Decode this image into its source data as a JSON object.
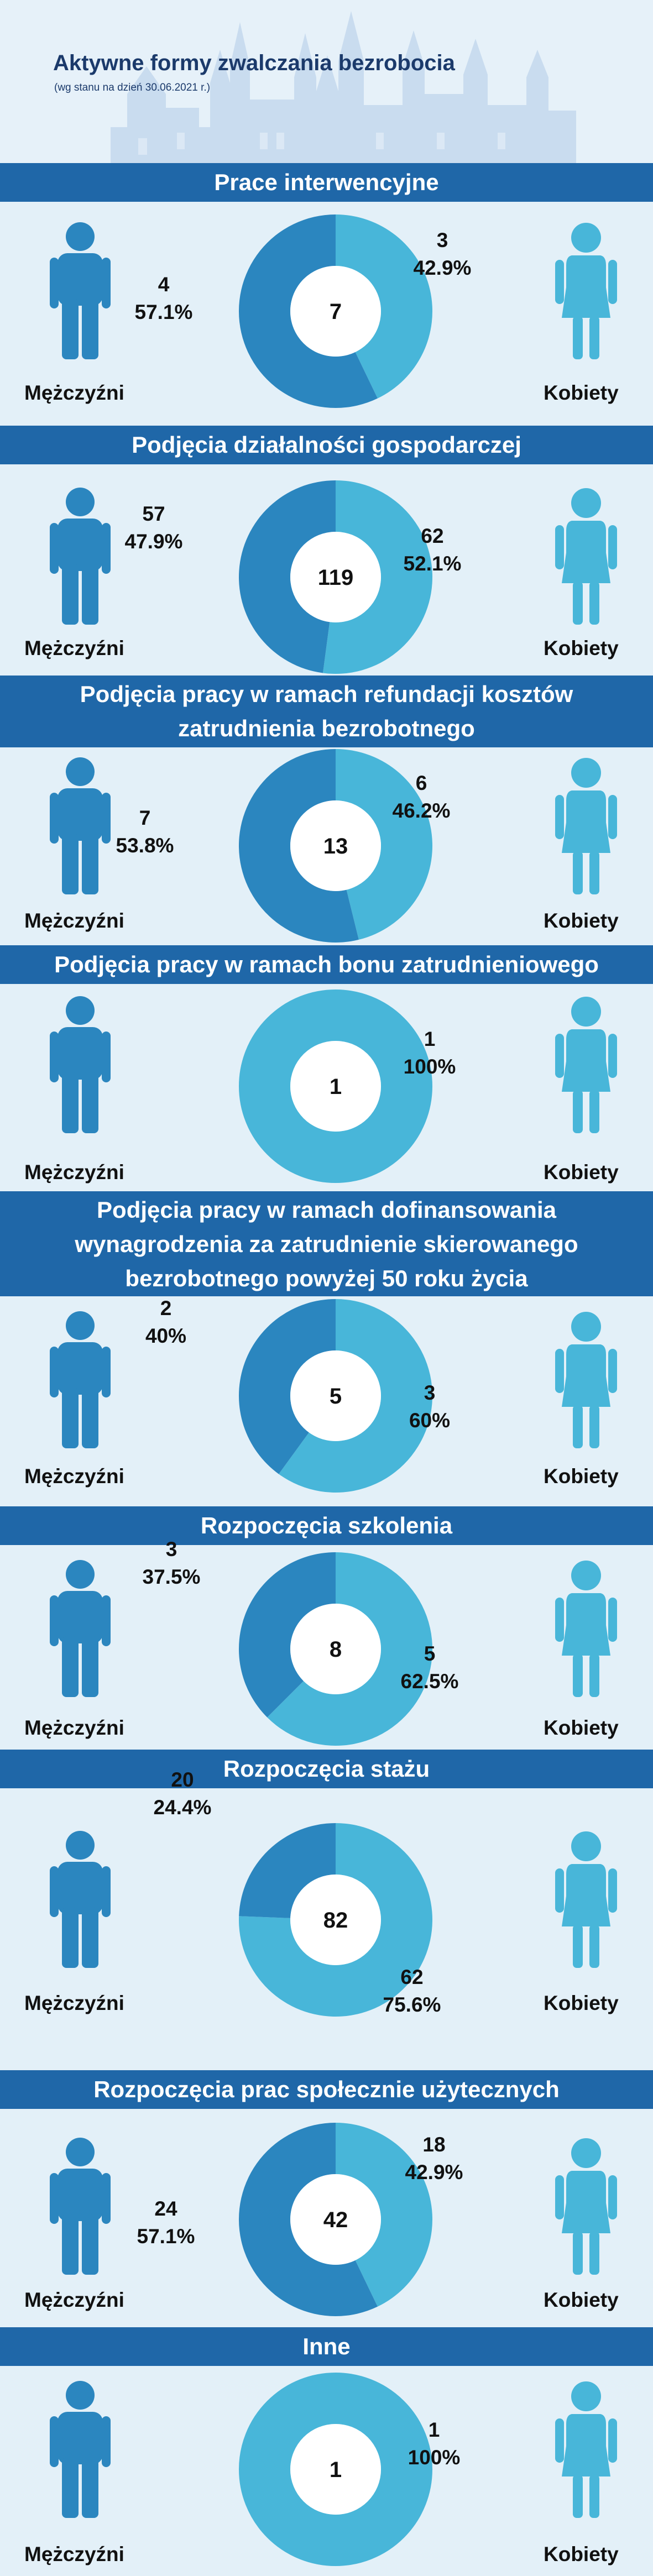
{
  "header": {
    "title": "Aktywne formy zwalczania bezrobocia",
    "subtitle": "(wg stanu na dzień 30.06.2021 r.)"
  },
  "labels": {
    "men": "Mężczyźni",
    "women": "Kobiety"
  },
  "colors": {
    "men": "#2b86bf",
    "women": "#48b6d9",
    "band": "#1f67a8",
    "background": "#e3f0f8"
  },
  "chart_data": [
    {
      "type": "pie",
      "title": "Prace interwencyjne",
      "total": "7",
      "categories": [
        "Mężczyźni",
        "Kobiety"
      ],
      "values": [
        4,
        3
      ],
      "men": {
        "count": "4",
        "pct": "57.1%"
      },
      "women": {
        "count": "3",
        "pct": "42.9%"
      }
    },
    {
      "type": "pie",
      "title": "Podjęcia działalności gospodarczej",
      "total": "119",
      "categories": [
        "Mężczyźni",
        "Kobiety"
      ],
      "values": [
        57,
        62
      ],
      "men": {
        "count": "57",
        "pct": "47.9%"
      },
      "women": {
        "count": "62",
        "pct": "52.1%"
      }
    },
    {
      "type": "pie",
      "title": "Podjęcia pracy w ramach refundacji kosztów zatrudnienia bezrobotnego",
      "total": "13",
      "categories": [
        "Mężczyźni",
        "Kobiety"
      ],
      "values": [
        7,
        6
      ],
      "men": {
        "count": "7",
        "pct": "53.8%"
      },
      "women": {
        "count": "6",
        "pct": "46.2%"
      }
    },
    {
      "type": "pie",
      "title": "Podjęcia pracy w ramach bonu zatrudnieniowego",
      "total": "1",
      "categories": [
        "Mężczyźni",
        "Kobiety"
      ],
      "values": [
        0,
        1
      ],
      "men": null,
      "women": {
        "count": "1",
        "pct": "100%"
      }
    },
    {
      "type": "pie",
      "title": "Podjęcia pracy w ramach dofinansowania wynagrodzenia za zatrudnienie skierowanego bezrobotnego powyżej 50 roku życia",
      "total": "5",
      "categories": [
        "Mężczyźni",
        "Kobiety"
      ],
      "values": [
        2,
        3
      ],
      "men": {
        "count": "2",
        "pct": "40%"
      },
      "women": {
        "count": "3",
        "pct": "60%"
      }
    },
    {
      "type": "pie",
      "title": "Rozpoczęcia szkolenia",
      "total": "8",
      "categories": [
        "Mężczyźni",
        "Kobiety"
      ],
      "values": [
        3,
        5
      ],
      "men": {
        "count": "3",
        "pct": "37.5%"
      },
      "women": {
        "count": "5",
        "pct": "62.5%"
      }
    },
    {
      "type": "pie",
      "title": "Rozpoczęcia stażu",
      "total": "82",
      "categories": [
        "Mężczyźni",
        "Kobiety"
      ],
      "values": [
        20,
        62
      ],
      "men": {
        "count": "20",
        "pct": "24.4%"
      },
      "women": {
        "count": "62",
        "pct": "75.6%"
      }
    },
    {
      "type": "pie",
      "title": "Rozpoczęcia prac społecznie użytecznych",
      "total": "42",
      "categories": [
        "Mężczyźni",
        "Kobiety"
      ],
      "values": [
        24,
        18
      ],
      "men": {
        "count": "24",
        "pct": "57.1%"
      },
      "women": {
        "count": "18",
        "pct": "42.9%"
      }
    },
    {
      "type": "pie",
      "title": "Inne",
      "total": "1",
      "categories": [
        "Mężczyźni",
        "Kobiety"
      ],
      "values": [
        0,
        1
      ],
      "men": null,
      "women": {
        "count": "1",
        "pct": "100%"
      }
    }
  ]
}
